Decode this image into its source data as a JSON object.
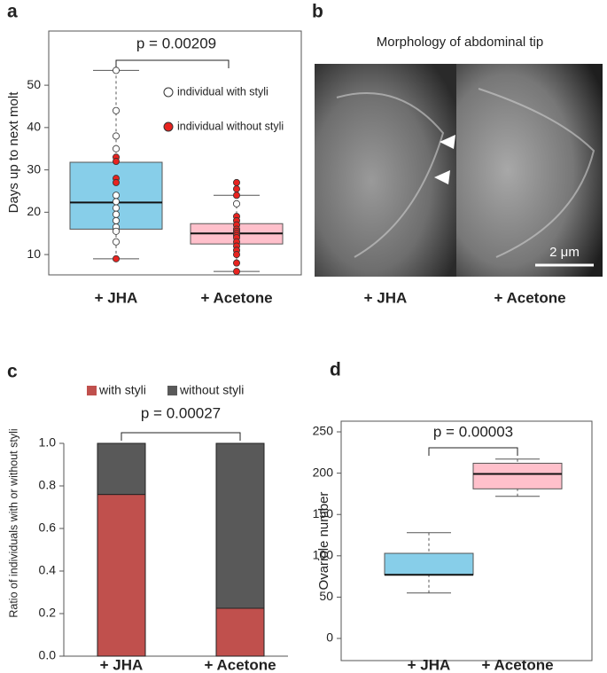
{
  "chart_data": [
    {
      "type": "box",
      "label": "a",
      "ylabel": "Days up to next molt",
      "annotation": "p = 0.00209",
      "categories": [
        "+ JHA",
        "+ Acetone"
      ],
      "boxes": [
        {
          "min": 9,
          "q1": 16,
          "median": 22.3,
          "q3": 31.8,
          "max": 53.5,
          "color": "#87cee9"
        },
        {
          "min": 6,
          "q1": 12.5,
          "median": 15,
          "q3": 17.3,
          "max": 24,
          "color": "#ffc0cb"
        }
      ],
      "series": [
        {
          "name": "individual with styli",
          "color": "#ffffff",
          "values": [
            [
              53.5,
              44,
              38,
              35,
              24,
              22.5,
              21,
              19.5,
              18,
              16.5,
              15.5,
              13
            ],
            [
              22
            ]
          ]
        },
        {
          "name": "individual without styli",
          "color": "#e8231f",
          "values": [
            [
              33,
              32,
              28,
              27,
              9
            ],
            [
              27,
              25.5,
              24,
              19,
              18,
              17,
              16,
              15.5,
              15,
              14.5,
              14,
              13,
              12,
              11,
              10,
              8,
              6
            ]
          ]
        }
      ],
      "ylim": [
        5.2,
        62.8
      ],
      "yticks": [
        10,
        20,
        30,
        40,
        50
      ]
    },
    {
      "type": "stacked_bar",
      "label": "c",
      "ylabel": "Ratio of individuals with or without styli",
      "annotation": "p = 0.00027",
      "categories": [
        "+ JHA",
        "+ Acetone"
      ],
      "series": [
        {
          "name": "with styli",
          "color": "#c0504d",
          "values": [
            0.76,
            0.225
          ]
        },
        {
          "name": "without styli",
          "color": "#595959",
          "values": [
            0.24,
            0.775
          ]
        }
      ],
      "ylim": [
        0,
        1
      ],
      "yticks": [
        {
          "value": 0,
          "label": "0.0"
        },
        0.2,
        0.4,
        0.6,
        0.8,
        {
          "value": 1,
          "label": "1.0"
        }
      ]
    },
    {
      "type": "box",
      "label": "d",
      "ylabel": "Ovariole number",
      "annotation": "p = 0.00003",
      "categories": [
        "+ JHA",
        "+ Acetone"
      ],
      "boxes": [
        {
          "min": 55,
          "q1": 77,
          "median": 77,
          "q3": 103,
          "max": 128,
          "color": "#87cee9"
        },
        {
          "min": 172,
          "q1": 181,
          "median": 199,
          "q3": 212,
          "max": 217,
          "color": "#ffc0cb"
        }
      ],
      "ylim": [
        -26.8,
        262.9
      ],
      "yticks": [
        0,
        50,
        100,
        150,
        200,
        250
      ]
    }
  ],
  "image_panel": {
    "label": "b",
    "title": "Morphology of abdominal tip",
    "labels": [
      "+ JHA",
      "+ Acetone"
    ],
    "scale_bar": "2 μm"
  }
}
